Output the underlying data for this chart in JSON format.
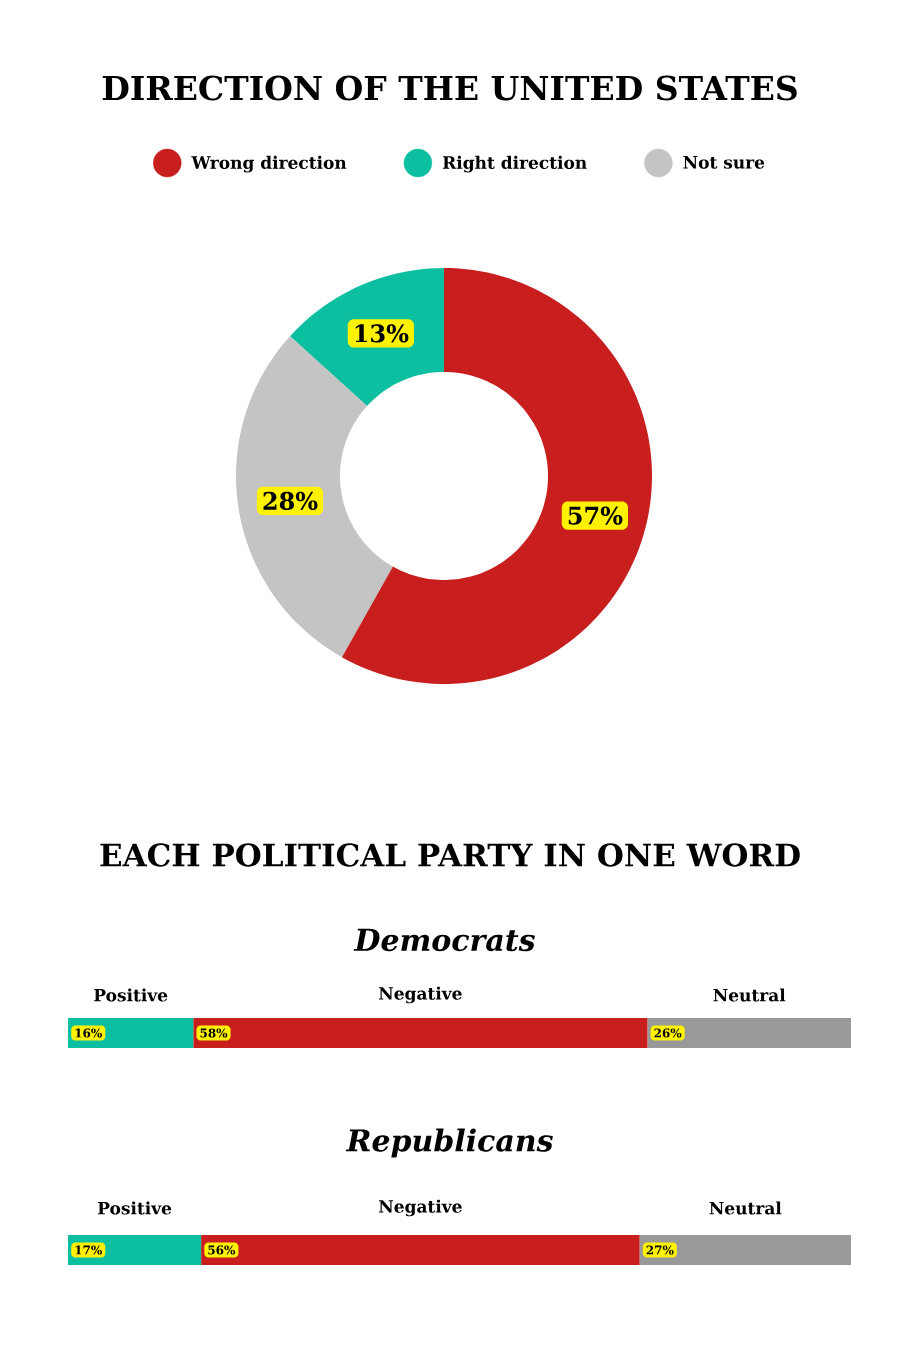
{
  "chart_data": [
    {
      "type": "donut",
      "title": "DIRECTION OF THE UNITED STATES",
      "categories": [
        "Wrong direction",
        "Right direction",
        "Not sure"
      ],
      "values": [
        57,
        13,
        28
      ],
      "colors": [
        "#c81e1e",
        "#0bbfa0",
        "#c4c4c4"
      ],
      "value_labels": [
        "57%",
        "13%",
        "28%"
      ],
      "legend": "top"
    },
    {
      "type": "bar",
      "title": "EACH POLITICAL PARTY IN ONE WORD",
      "subtitle": "Democrats",
      "orientation": "horizontal",
      "stacked": true,
      "categories": [
        null
      ],
      "series": [
        {
          "name": "Positive",
          "color": "#0bbfa0",
          "values": [
            16
          ],
          "value_labels": [
            "16%"
          ]
        },
        {
          "name": "Negative",
          "color": "#c81e1e",
          "values": [
            58
          ],
          "value_labels": [
            "58%"
          ]
        },
        {
          "name": "Neutral",
          "color": "#999999",
          "values": [
            26
          ],
          "value_labels": [
            "26%"
          ]
        }
      ]
    },
    {
      "type": "bar",
      "title": "Republicans",
      "orientation": "horizontal",
      "stacked": true,
      "categories": [
        null
      ],
      "series": [
        {
          "name": "Positive",
          "color": "#0bbfa0",
          "values": [
            17
          ],
          "value_labels": [
            "17%"
          ]
        },
        {
          "name": "Negative",
          "color": "#c81e1e",
          "values": [
            56
          ],
          "value_labels": [
            "56%"
          ]
        },
        {
          "name": "Neutral",
          "color": "#999999",
          "values": [
            27
          ],
          "value_labels": [
            "27%"
          ]
        }
      ]
    }
  ]
}
